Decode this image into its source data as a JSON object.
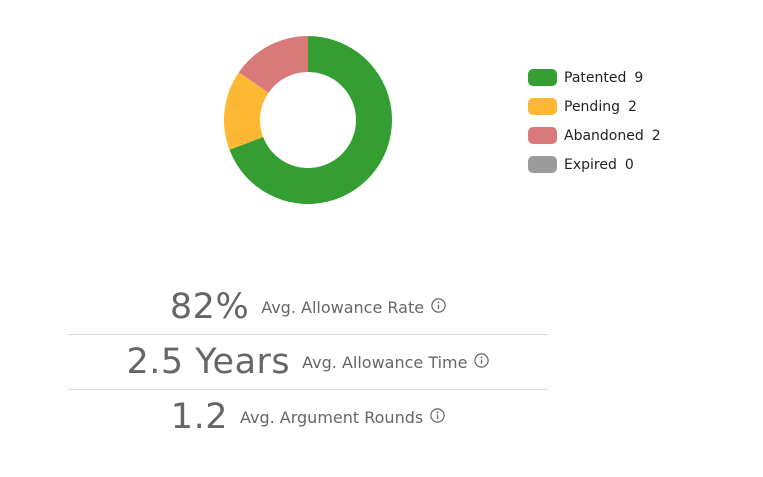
{
  "chart_data": {
    "type": "pie",
    "style": "donut",
    "categories": [
      "Patented",
      "Pending",
      "Abandoned",
      "Expired"
    ],
    "values": [
      9,
      2,
      2,
      0
    ],
    "colors": [
      "#349e33",
      "#ffb833",
      "#d97a7a",
      "#9b9b9b"
    ],
    "start": "top, clockwise",
    "legend_position": "right"
  },
  "legend": [
    {
      "label": "Patented",
      "count": "9"
    },
    {
      "label": "Pending",
      "count": "2"
    },
    {
      "label": "Abandoned",
      "count": "2"
    },
    {
      "label": "Expired",
      "count": "0"
    }
  ],
  "stats": [
    {
      "value": "82%",
      "label": "Avg. Allowance Rate",
      "icon": "info-icon"
    },
    {
      "value": "2.5 Years",
      "label": "Avg. Allowance Time",
      "icon": "info-icon"
    },
    {
      "value": "1.2",
      "label": "Avg. Argument Rounds",
      "icon": "info-icon"
    }
  ]
}
